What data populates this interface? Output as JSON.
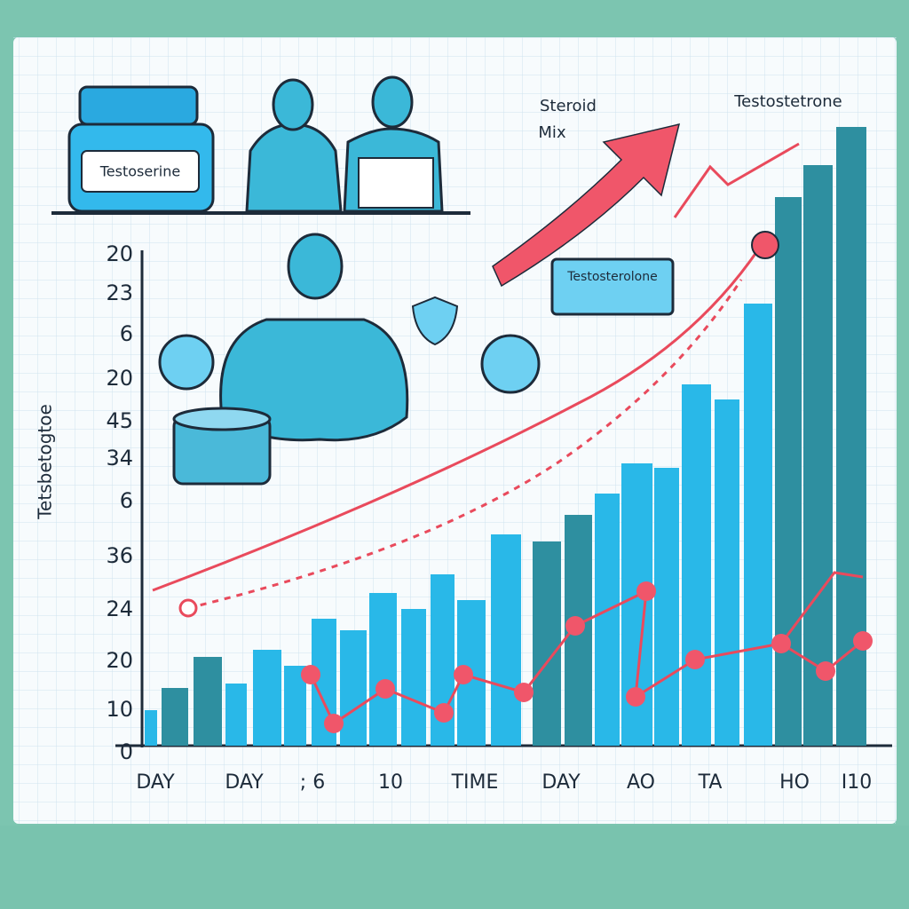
{
  "jar_label": "Testoserine",
  "callout_top": [
    "Steroid",
    "Mix"
  ],
  "callout_right": "Testostetrone",
  "card_label": "Testosterolone",
  "axis_title": "Tetsbetogtoe",
  "y_labels": [
    20,
    23,
    6,
    20,
    45,
    34,
    6,
    36,
    24,
    20,
    10,
    0
  ],
  "x_labels": [
    "DAY",
    "DAY",
    "; 6",
    "10",
    "TIME",
    "DAY",
    "AO",
    "TA",
    "HO",
    "I10"
  ]
}
